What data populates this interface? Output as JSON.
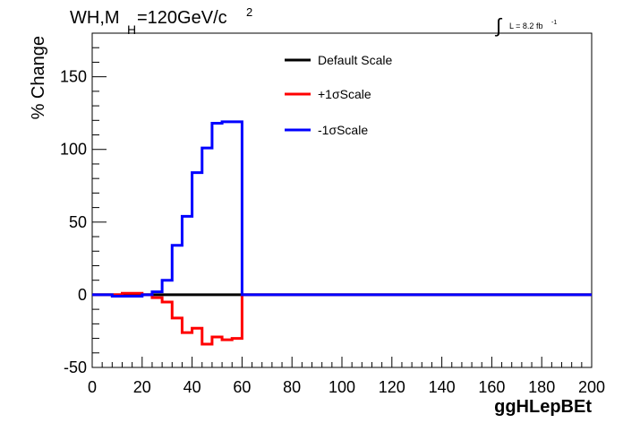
{
  "chart_data": {
    "type": "line",
    "title": {
      "main": "WH,M",
      "sub": "H",
      "rest": "=120GeV/c",
      "sup": "2"
    },
    "lumi": {
      "symbol": "∫",
      "text": "L = 8.2 fb",
      "sup": "-1"
    },
    "xlabel": "ggHLepBEt",
    "ylabel": "% Change",
    "xlim": [
      0,
      200
    ],
    "ylim": [
      -50,
      180
    ],
    "x_ticks": [
      0,
      20,
      40,
      60,
      80,
      100,
      120,
      140,
      160,
      180,
      200
    ],
    "y_ticks": [
      -50,
      0,
      50,
      100,
      150
    ],
    "bin_edges": [
      0,
      4,
      8,
      12,
      16,
      20,
      24,
      28,
      32,
      36,
      40,
      44,
      48,
      52,
      56,
      60,
      200
    ],
    "series": [
      {
        "name": "Default Scale",
        "color": "#000000",
        "values": [
          0,
          0,
          0,
          0,
          0,
          0,
          0,
          0,
          0,
          0,
          0,
          0,
          0,
          0,
          0,
          0
        ]
      },
      {
        "name": "+1σScale",
        "color": "#ff0000",
        "values": [
          0,
          0,
          0,
          1,
          1,
          0,
          -2,
          -5,
          -16,
          -26,
          -23,
          -34,
          -29,
          -31,
          -30,
          0
        ]
      },
      {
        "name": "-1σScale",
        "color": "#0000ff",
        "values": [
          0,
          0,
          -1,
          -1,
          -1,
          0,
          2,
          10,
          34,
          54,
          84,
          101,
          118,
          119,
          119,
          0
        ]
      }
    ],
    "legend_position": "top-center"
  }
}
